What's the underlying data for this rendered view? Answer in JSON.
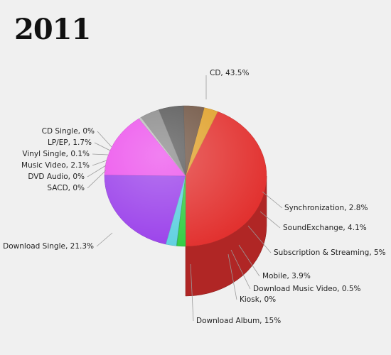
{
  "title": "2011",
  "chart_data": {
    "type": "pie",
    "title": "2011",
    "slices": [
      {
        "label": "CD",
        "value": 43.5,
        "color": "#e2312f"
      },
      {
        "label": "Synchronization",
        "value": 2.8,
        "color": "#e0a028"
      },
      {
        "label": "SoundExchange",
        "value": 4.1,
        "color": "#6e5240"
      },
      {
        "label": "Subscription & Streaming",
        "value": 5,
        "color": "#555555"
      },
      {
        "label": "Mobile",
        "value": 3.9,
        "color": "#888888"
      },
      {
        "label": "Download Music Video",
        "value": 0.5,
        "color": "#bdbdbd"
      },
      {
        "label": "Kiosk",
        "value": 0,
        "color": "#d0d0d0"
      },
      {
        "label": "Download Album",
        "value": 15,
        "color": "#ec50ec"
      },
      {
        "label": "Download Single",
        "value": 21.3,
        "color": "#9a40ea"
      },
      {
        "label": "SACD",
        "value": 0,
        "color": "#6a6ad8"
      },
      {
        "label": "DVD Audio",
        "value": 0,
        "color": "#6080e0"
      },
      {
        "label": "Music Video",
        "value": 2.1,
        "color": "#5fd0e0"
      },
      {
        "label": "Vinyl Single",
        "value": 0.1,
        "color": "#40c0a0"
      },
      {
        "label": "LP/EP",
        "value": 1.7,
        "color": "#33cc44"
      },
      {
        "label": "CD Single",
        "value": 0,
        "color": "#22aa33"
      }
    ],
    "labels": [
      "CD, 43.5%",
      "Synchronization, 2.8%",
      "SoundExchange, 4.1%",
      "Subscription & Streaming, 5%",
      "Mobile, 3.9%",
      "Download Music Video, 0.5%",
      "Kiosk, 0%",
      "Download Album, 15%",
      "Download Single, 21.3%",
      "SACD, 0%",
      "DVD Audio, 0%",
      "Music Video, 2.1%",
      "Vinyl Single, 0.1%",
      "LP/EP, 1.7%",
      "CD Single, 0%"
    ]
  }
}
